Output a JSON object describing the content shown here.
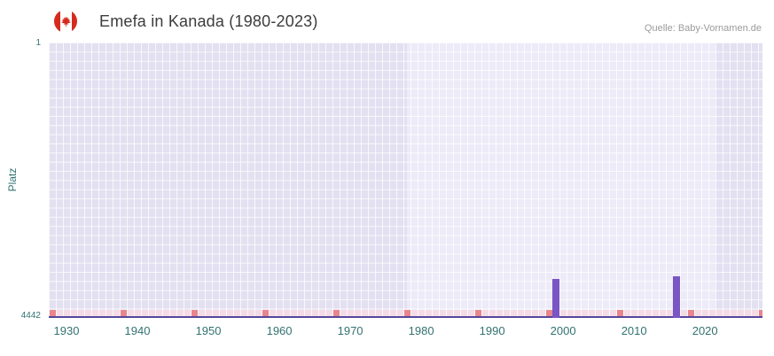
{
  "header": {
    "title": "Emefa in Kanada (1980-2023)",
    "source": "Quelle: Baby-Vornamen.de",
    "flag": "canada-flag-icon"
  },
  "chart_data": {
    "type": "bar",
    "title": "Emefa in Kanada (1980-2023)",
    "xlabel": "",
    "ylabel": "Platz",
    "y_axis": {
      "min": 1,
      "max": 4442,
      "inverted": true,
      "top_label": "1",
      "bottom_label": "4442"
    },
    "x_axis": {
      "domain": [
        1927.5,
        2028.1
      ],
      "ticks": [
        1930,
        1940,
        1950,
        1960,
        1970,
        1980,
        1990,
        2000,
        2010,
        2020
      ]
    },
    "bands": [
      {
        "from": 1927.5,
        "to": 1978,
        "shade": "dark"
      },
      {
        "from": 1978,
        "to": 2021.5,
        "shade": "light"
      },
      {
        "from": 2021.5,
        "to": 2028.1,
        "shade": "dark"
      }
    ],
    "bars": [
      {
        "year": 1999,
        "rank": 3810
      },
      {
        "year": 2016,
        "rank": 3770
      }
    ],
    "strip": {
      "year_start": 1928,
      "year_end": 2028,
      "highlight_years": [
        1928,
        1938,
        1948,
        1958,
        1968,
        1978,
        1988,
        1998,
        2008,
        2018,
        2028
      ]
    },
    "grid": true,
    "legend": false,
    "colors": {
      "band_dark": "#e3e0f1",
      "band_light": "#edebf8",
      "bar": "#7a55c4",
      "axis_line": "#55479c",
      "strip_base": "#f5dbe6",
      "strip_highlight": "#e9858c",
      "tick_text": "#337272",
      "title_text": "#3c3c3c",
      "source_text": "#9b9b9b",
      "flag_red": "#d52b1e"
    }
  }
}
